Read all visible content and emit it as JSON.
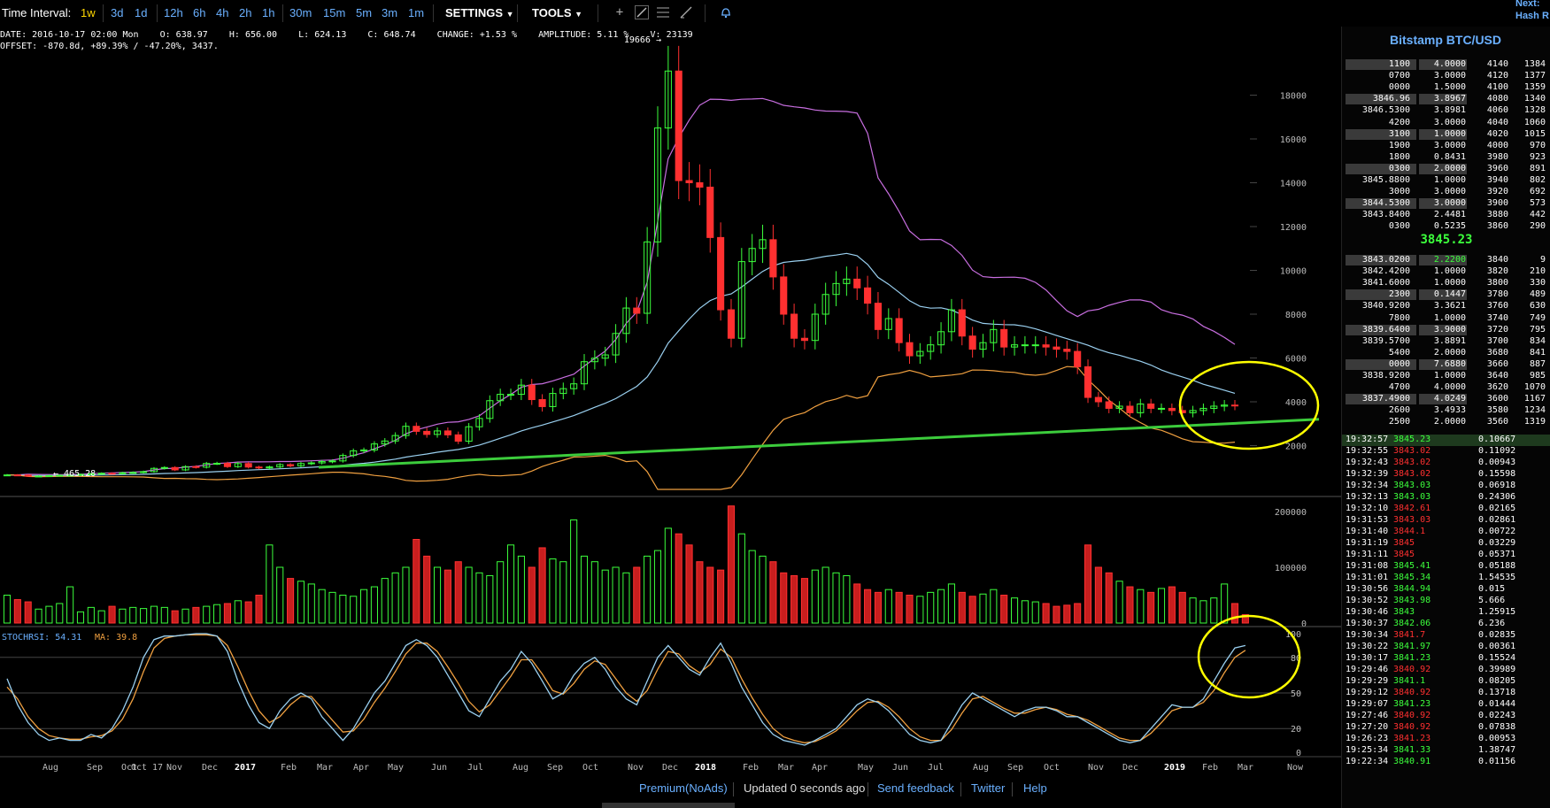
{
  "toolbar": {
    "label": "Time Interval:",
    "intervals": [
      "1w",
      "3d",
      "1d",
      "12h",
      "6h",
      "4h",
      "2h",
      "1h",
      "30m",
      "15m",
      "5m",
      "3m",
      "1m"
    ],
    "active_interval": "1w",
    "settings_label": "SETTINGS",
    "tools_label": "TOOLS"
  },
  "corner": {
    "line1": "Next:",
    "line2": "Hash R"
  },
  "info_bar": {
    "line1": "DATE: 2016-10-17 02:00 Mon    O: 638.97    H: 656.00    L: 624.13    C: 648.74    CHANGE: +1.53 %    AMPLITUDE: 5.11 %    V: 23139",
    "line2": "OFFSET: -870.8d, +89.39% / -47.20%, 3437."
  },
  "annotations": {
    "peak": "19666 →",
    "low": "← 465.28"
  },
  "indicator": {
    "name": "STOCHRSI: 54.31",
    "ma": "MA: 39.8"
  },
  "colors": {
    "up": "#3cff3c",
    "down": "#ff3030",
    "accent": "#6ab0ff",
    "bb_upper": "#c86ee0",
    "bb_mid": "#9ad0f0",
    "bb_lower": "#f0a040",
    "trend": "#3ccc3c",
    "circle": "#ffff00"
  },
  "chart_data": [
    {
      "type": "candlestick",
      "title": "",
      "ylim": [
        0,
        20000
      ],
      "y_ticks": [
        "2000",
        "4000",
        "6000",
        "8000",
        "10000",
        "12000",
        "14000",
        "16000",
        "18000"
      ],
      "x_ticks": [
        "Aug",
        "Sep",
        "Oct 17",
        "Oct",
        "Nov",
        "Dec",
        "2017",
        "Feb",
        "Mar",
        "Apr",
        "May",
        "Jun",
        "Jul",
        "Aug",
        "Sep",
        "Oct",
        "Nov",
        "Dec",
        "2018",
        "Feb",
        "Mar",
        "Apr",
        "May",
        "Jun",
        "Jul",
        "Aug",
        "Sep",
        "Oct",
        "Nov",
        "Dec",
        "2019",
        "Feb",
        "Mar",
        "Now"
      ],
      "x_start": "2016-07-18",
      "series": [
        {
          "values": [
            660,
            655,
            605,
            610,
            630,
            645,
            650,
            685,
            715,
            735,
            725,
            760,
            775,
            810,
            960,
            1000,
            890,
            1040,
            1015,
            1185,
            1190,
            1040,
            1180,
            1020,
            980,
            1025,
            1130,
            1075,
            1180,
            1210,
            1270,
            1300,
            1550,
            1760,
            1800,
            2075,
            2210,
            2460,
            2880,
            2650,
            2510,
            2670,
            2490,
            2200,
            2860,
            3240,
            4050,
            4340,
            4340,
            4760,
            4100,
            3780,
            4380,
            4600,
            4820,
            5830,
            5990,
            6140,
            7120,
            8280,
            8040,
            11300,
            16500,
            19100,
            14100,
            14000,
            13800,
            11500,
            8200,
            6900,
            10400,
            11000,
            11400,
            9700,
            8000,
            6900,
            6800,
            8000,
            8900,
            9400,
            9600,
            9200,
            8500,
            7300,
            7800,
            6700,
            6100,
            6300,
            6600,
            7200,
            8200,
            7000,
            6400,
            6700,
            7300,
            6500,
            6600,
            6600,
            6600,
            6500,
            6400,
            6300,
            5600,
            4200,
            4000,
            3700,
            3800,
            3500,
            3900,
            3700,
            3700,
            3600,
            3500,
            3600,
            3700,
            3800,
            3850,
            3845.23
          ]
        }
      ]
    },
    {
      "type": "bar",
      "title": "",
      "ylim": [
        0,
        200000
      ],
      "y_ticks": [
        "0",
        "100000",
        "200000"
      ],
      "series": [
        {
          "values": [
            50000,
            42000,
            38000,
            25000,
            30000,
            35000,
            65000,
            20000,
            28000,
            22000,
            30000,
            25000,
            28000,
            26000,
            30000,
            28000,
            22000,
            25000,
            28000,
            30000,
            33000,
            35000,
            40000,
            38000,
            50000,
            140000,
            100000,
            80000,
            75000,
            70000,
            60000,
            55000,
            50000,
            48000,
            60000,
            65000,
            80000,
            90000,
            100000,
            150000,
            120000,
            100000,
            95000,
            110000,
            100000,
            90000,
            85000,
            110000,
            140000,
            120000,
            100000,
            135000,
            115000,
            110000,
            185000,
            120000,
            110000,
            95000,
            100000,
            90000,
            100000,
            120000,
            130000,
            170000,
            160000,
            140000,
            110000,
            100000,
            95000,
            210000,
            160000,
            130000,
            120000,
            110000,
            90000,
            85000,
            80000,
            95000,
            100000,
            90000,
            85000,
            70000,
            60000,
            55000,
            60000,
            55000,
            50000,
            48000,
            55000,
            60000,
            70000,
            55000,
            48000,
            52000,
            60000,
            50000,
            45000,
            40000,
            38000,
            35000,
            30000,
            32000,
            35000,
            140000,
            100000,
            90000,
            75000,
            65000,
            60000,
            55000,
            62000,
            65000,
            55000,
            45000,
            40000,
            45000,
            70000,
            35000,
            15000
          ]
        }
      ]
    },
    {
      "type": "line",
      "title": "",
      "ylim": [
        0,
        100
      ],
      "y_ticks": [
        "0",
        "20",
        "50",
        "80",
        "100"
      ],
      "series": [
        {
          "values": [
            62,
            40,
            25,
            15,
            10,
            12,
            10,
            10,
            15,
            12,
            20,
            35,
            55,
            80,
            95,
            98,
            98,
            99,
            100,
            100,
            98,
            85,
            60,
            40,
            25,
            20,
            35,
            45,
            50,
            45,
            30,
            20,
            10,
            20,
            35,
            50,
            60,
            75,
            90,
            95,
            90,
            80,
            65,
            50,
            35,
            30,
            45,
            60,
            70,
            85,
            75,
            60,
            45,
            50,
            65,
            75,
            80,
            70,
            55,
            45,
            40,
            60,
            80,
            90,
            80,
            70,
            65,
            80,
            92,
            75,
            55,
            40,
            25,
            15,
            10,
            8,
            6,
            10,
            15,
            20,
            30,
            40,
            45,
            42,
            35,
            25,
            15,
            10,
            8,
            10,
            25,
            40,
            50,
            45,
            40,
            35,
            30,
            35,
            38,
            38,
            35,
            30,
            30,
            25,
            20,
            15,
            10,
            8,
            10,
            20,
            30,
            40,
            38,
            38,
            45,
            60,
            75,
            88,
            90
          ]
        },
        {
          "values": [
            55,
            45,
            30,
            20,
            14,
            12,
            11,
            11,
            13,
            14,
            18,
            28,
            45,
            68,
            88,
            96,
            98,
            99,
            99,
            99,
            98,
            90,
            72,
            52,
            35,
            25,
            30,
            40,
            47,
            47,
            37,
            27,
            17,
            18,
            28,
            42,
            54,
            68,
            83,
            92,
            92,
            85,
            72,
            58,
            43,
            34,
            40,
            52,
            64,
            78,
            78,
            66,
            52,
            49,
            58,
            70,
            77,
            74,
            62,
            50,
            43,
            52,
            70,
            85,
            83,
            73,
            67,
            74,
            87,
            80,
            62,
            46,
            32,
            20,
            13,
            10,
            8,
            9,
            13,
            18,
            26,
            35,
            42,
            43,
            38,
            30,
            20,
            13,
            10,
            10,
            19,
            33,
            45,
            47,
            42,
            37,
            33,
            33,
            36,
            38,
            36,
            32,
            30,
            27,
            22,
            17,
            12,
            10,
            10,
            16,
            25,
            35,
            38,
            38,
            42,
            52,
            67,
            80,
            86
          ]
        }
      ]
    }
  ],
  "orderbook": {
    "title": "Bitstamp BTC/USD",
    "asks": [
      [
        "1100",
        "4.0000",
        "4140",
        "1384"
      ],
      [
        "0700",
        "3.0000",
        "4120",
        "1377"
      ],
      [
        "0000",
        "1.5000",
        "4100",
        "1359"
      ],
      [
        "3846.96",
        "3.8967",
        "4080",
        "1340"
      ],
      [
        "3846.5300",
        "3.8981",
        "4060",
        "1328"
      ],
      [
        "4200",
        "3.0000",
        "4040",
        "1060"
      ],
      [
        "3100",
        "1.0000",
        "4020",
        "1015"
      ],
      [
        "1900",
        "3.0000",
        "4000",
        "970"
      ],
      [
        "1800",
        "0.8431",
        "3980",
        "923"
      ],
      [
        "0300",
        "2.0000",
        "3960",
        "891"
      ],
      [
        "3845.8800",
        "1.0000",
        "3940",
        "802"
      ],
      [
        "3000",
        "3.0000",
        "3920",
        "692"
      ],
      [
        "3844.5300",
        "3.0000",
        "3900",
        "573"
      ],
      [
        "3843.8400",
        "2.4481",
        "3880",
        "442"
      ],
      [
        "0300",
        "0.5235",
        "3860",
        "290"
      ]
    ],
    "mid_price": "3845.23",
    "bids": [
      [
        "3843.0200",
        "2.2200",
        "3840",
        "9"
      ],
      [
        "3842.4200",
        "1.0000",
        "3820",
        "210"
      ],
      [
        "3841.6000",
        "1.0000",
        "3800",
        "330"
      ],
      [
        "2300",
        "0.1447",
        "3780",
        "489"
      ],
      [
        "3840.9200",
        "3.3621",
        "3760",
        "630"
      ],
      [
        "7800",
        "1.0000",
        "3740",
        "749"
      ],
      [
        "3839.6400",
        "3.9000",
        "3720",
        "795"
      ],
      [
        "3839.5700",
        "3.8891",
        "3700",
        "834"
      ],
      [
        "5400",
        "2.0000",
        "3680",
        "841"
      ],
      [
        "0000",
        "7.6880",
        "3660",
        "887"
      ],
      [
        "3838.9200",
        "1.0000",
        "3640",
        "985"
      ],
      [
        "4700",
        "4.0000",
        "3620",
        "1070"
      ],
      [
        "3837.4900",
        "4.0249",
        "3600",
        "1167"
      ],
      [
        "2600",
        "3.4933",
        "3580",
        "1234"
      ],
      [
        "2500",
        "2.0000",
        "3560",
        "1319"
      ]
    ],
    "trades": [
      [
        "19:32:57",
        "3845.23",
        "0.10667",
        "up"
      ],
      [
        "19:32:55",
        "3843.02",
        "0.11092",
        "down"
      ],
      [
        "19:32:43",
        "3843.02",
        "0.00943",
        "down"
      ],
      [
        "19:32:39",
        "3843.02",
        "0.15598",
        "down"
      ],
      [
        "19:32:34",
        "3843.03",
        "0.06918",
        "up"
      ],
      [
        "19:32:13",
        "3843.03",
        "0.24306",
        "up"
      ],
      [
        "19:32:10",
        "3842.61",
        "0.02165",
        "down"
      ],
      [
        "19:31:53",
        "3843.03",
        "0.02861",
        "down"
      ],
      [
        "19:31:40",
        "3844.1",
        "0.00722",
        "down"
      ],
      [
        "19:31:19",
        "3845",
        "0.03229",
        "down"
      ],
      [
        "19:31:11",
        "3845",
        "0.05371",
        "down"
      ],
      [
        "19:31:08",
        "3845.41",
        "0.05188",
        "up"
      ],
      [
        "19:31:01",
        "3845.34",
        "1.54535",
        "up"
      ],
      [
        "19:30:56",
        "3844.94",
        "0.015",
        "up"
      ],
      [
        "19:30:52",
        "3843.98",
        "5.666",
        "up"
      ],
      [
        "19:30:46",
        "3843",
        "1.25915",
        "up"
      ],
      [
        "19:30:37",
        "3842.06",
        "6.236",
        "up"
      ],
      [
        "19:30:34",
        "3841.7",
        "0.02835",
        "down"
      ],
      [
        "19:30:22",
        "3841.97",
        "0.00361",
        "up"
      ],
      [
        "19:30:17",
        "3841.23",
        "0.15524",
        "up"
      ],
      [
        "19:29:46",
        "3840.92",
        "0.39989",
        "down"
      ],
      [
        "19:29:29",
        "3841.1",
        "0.08205",
        "up"
      ],
      [
        "19:29:12",
        "3840.92",
        "0.13718",
        "down"
      ],
      [
        "19:29:07",
        "3841.23",
        "0.01444",
        "up"
      ],
      [
        "19:27:46",
        "3840.92",
        "0.02243",
        "down"
      ],
      [
        "19:27:20",
        "3840.92",
        "0.07838",
        "down"
      ],
      [
        "19:26:23",
        "3841.23",
        "0.00953",
        "down"
      ],
      [
        "19:25:34",
        "3841.33",
        "1.38747",
        "up"
      ],
      [
        "19:22:34",
        "3840.91",
        "0.01156",
        "up"
      ]
    ]
  },
  "footer": {
    "premium": "Premium(NoAds)",
    "updated": "Updated 0 seconds ago",
    "feedback": "Send feedback",
    "twitter": "Twitter",
    "help": "Help"
  }
}
